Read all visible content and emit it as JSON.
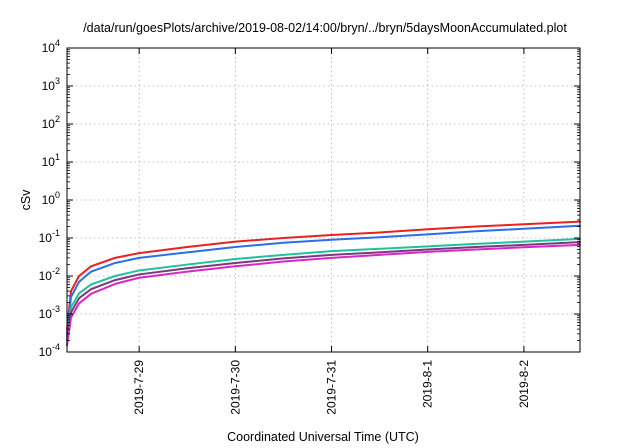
{
  "chart_data": {
    "type": "line",
    "title": "/data/run/goesPlots/archive/2019-08-02/14:00/bryn/../bryn/5daysMoonAccumulated.plot",
    "xlabel": "Coordinated Universal Time (UTC)",
    "ylabel": "cSv",
    "y_scale": "log",
    "ylim": [
      0.0001,
      10000
    ],
    "xlim": [
      "2019-07-28T06:00",
      "2019-08-02T14:00"
    ],
    "grid": "dotted",
    "legend": "none",
    "y_ticks": [
      {
        "value": 0.0001,
        "base": "10",
        "exp": "-4"
      },
      {
        "value": 0.001,
        "base": "10",
        "exp": "-3"
      },
      {
        "value": 0.01,
        "base": "10",
        "exp": "-2"
      },
      {
        "value": 0.1,
        "base": "10",
        "exp": "-1"
      },
      {
        "value": 1,
        "base": "10",
        "exp": "0"
      },
      {
        "value": 10,
        "base": "10",
        "exp": "1"
      },
      {
        "value": 100,
        "base": "10",
        "exp": "2"
      },
      {
        "value": 1000,
        "base": "10",
        "exp": "3"
      },
      {
        "value": 10000,
        "base": "10",
        "exp": "4"
      }
    ],
    "x_ticks": [
      {
        "value": "2019-07-29T00:00",
        "label": "2019-7-29"
      },
      {
        "value": "2019-07-30T00:00",
        "label": "2019-7-30"
      },
      {
        "value": "2019-07-31T00:00",
        "label": "2019-7-31"
      },
      {
        "value": "2019-08-01T00:00",
        "label": "2019-8-1"
      },
      {
        "value": "2019-08-02T00:00",
        "label": "2019-8-2"
      }
    ],
    "series": [
      {
        "color": "#e8221f",
        "points": [
          [
            "2019-07-28T06:00",
            0.0004
          ],
          [
            "2019-07-28T07:00",
            0.004
          ],
          [
            "2019-07-28T09:00",
            0.01
          ],
          [
            "2019-07-28T12:00",
            0.018
          ],
          [
            "2019-07-28T18:00",
            0.03
          ],
          [
            "2019-07-29T00:00",
            0.04
          ],
          [
            "2019-07-29T12:00",
            0.058
          ],
          [
            "2019-07-30T00:00",
            0.08
          ],
          [
            "2019-07-30T12:00",
            0.1
          ],
          [
            "2019-07-31T00:00",
            0.12
          ],
          [
            "2019-07-31T12:00",
            0.14
          ],
          [
            "2019-08-01T00:00",
            0.17
          ],
          [
            "2019-08-01T12:00",
            0.2
          ],
          [
            "2019-08-02T00:00",
            0.23
          ],
          [
            "2019-08-02T14:00",
            0.27
          ]
        ]
      },
      {
        "color": "#2a6ee8",
        "points": [
          [
            "2019-07-28T06:00",
            0.0003
          ],
          [
            "2019-07-28T07:00",
            0.0028
          ],
          [
            "2019-07-28T09:00",
            0.007
          ],
          [
            "2019-07-28T12:00",
            0.013
          ],
          [
            "2019-07-28T18:00",
            0.022
          ],
          [
            "2019-07-29T00:00",
            0.03
          ],
          [
            "2019-07-29T12:00",
            0.042
          ],
          [
            "2019-07-30T00:00",
            0.058
          ],
          [
            "2019-07-30T12:00",
            0.075
          ],
          [
            "2019-07-31T00:00",
            0.09
          ],
          [
            "2019-07-31T12:00",
            0.105
          ],
          [
            "2019-08-01T00:00",
            0.125
          ],
          [
            "2019-08-01T12:00",
            0.15
          ],
          [
            "2019-08-02T00:00",
            0.175
          ],
          [
            "2019-08-02T14:00",
            0.21
          ]
        ]
      },
      {
        "color": "#22c0a0",
        "points": [
          [
            "2019-07-28T06:00",
            0.00025
          ],
          [
            "2019-07-28T07:00",
            0.0015
          ],
          [
            "2019-07-28T09:00",
            0.0035
          ],
          [
            "2019-07-28T12:00",
            0.006
          ],
          [
            "2019-07-28T18:00",
            0.01
          ],
          [
            "2019-07-29T00:00",
            0.014
          ],
          [
            "2019-07-29T12:00",
            0.02
          ],
          [
            "2019-07-30T00:00",
            0.028
          ],
          [
            "2019-07-30T12:00",
            0.036
          ],
          [
            "2019-07-31T00:00",
            0.045
          ],
          [
            "2019-07-31T12:00",
            0.052
          ],
          [
            "2019-08-01T00:00",
            0.06
          ],
          [
            "2019-08-01T12:00",
            0.07
          ],
          [
            "2019-08-02T00:00",
            0.08
          ],
          [
            "2019-08-02T14:00",
            0.095
          ]
        ]
      },
      {
        "color": "#7a3a7a",
        "points": [
          [
            "2019-07-28T06:00",
            0.0002
          ],
          [
            "2019-07-28T07:00",
            0.0011
          ],
          [
            "2019-07-28T09:00",
            0.0026
          ],
          [
            "2019-07-28T12:00",
            0.0045
          ],
          [
            "2019-07-28T18:00",
            0.0078
          ],
          [
            "2019-07-29T00:00",
            0.011
          ],
          [
            "2019-07-29T12:00",
            0.016
          ],
          [
            "2019-07-30T00:00",
            0.022
          ],
          [
            "2019-07-30T12:00",
            0.029
          ],
          [
            "2019-07-31T00:00",
            0.036
          ],
          [
            "2019-07-31T12:00",
            0.042
          ],
          [
            "2019-08-01T00:00",
            0.05
          ],
          [
            "2019-08-01T12:00",
            0.058
          ],
          [
            "2019-08-02T00:00",
            0.066
          ],
          [
            "2019-08-02T14:00",
            0.078
          ]
        ]
      },
      {
        "color": "#d827c8",
        "points": [
          [
            "2019-07-28T06:00",
            0.00015
          ],
          [
            "2019-07-28T07:00",
            0.0008
          ],
          [
            "2019-07-28T09:00",
            0.0019
          ],
          [
            "2019-07-28T12:00",
            0.0034
          ],
          [
            "2019-07-28T18:00",
            0.0062
          ],
          [
            "2019-07-29T00:00",
            0.009
          ],
          [
            "2019-07-29T12:00",
            0.013
          ],
          [
            "2019-07-30T00:00",
            0.018
          ],
          [
            "2019-07-30T12:00",
            0.024
          ],
          [
            "2019-07-31T00:00",
            0.03
          ],
          [
            "2019-07-31T12:00",
            0.036
          ],
          [
            "2019-08-01T00:00",
            0.043
          ],
          [
            "2019-08-01T12:00",
            0.05
          ],
          [
            "2019-08-02T00:00",
            0.057
          ],
          [
            "2019-08-02T14:00",
            0.066
          ]
        ]
      }
    ]
  }
}
